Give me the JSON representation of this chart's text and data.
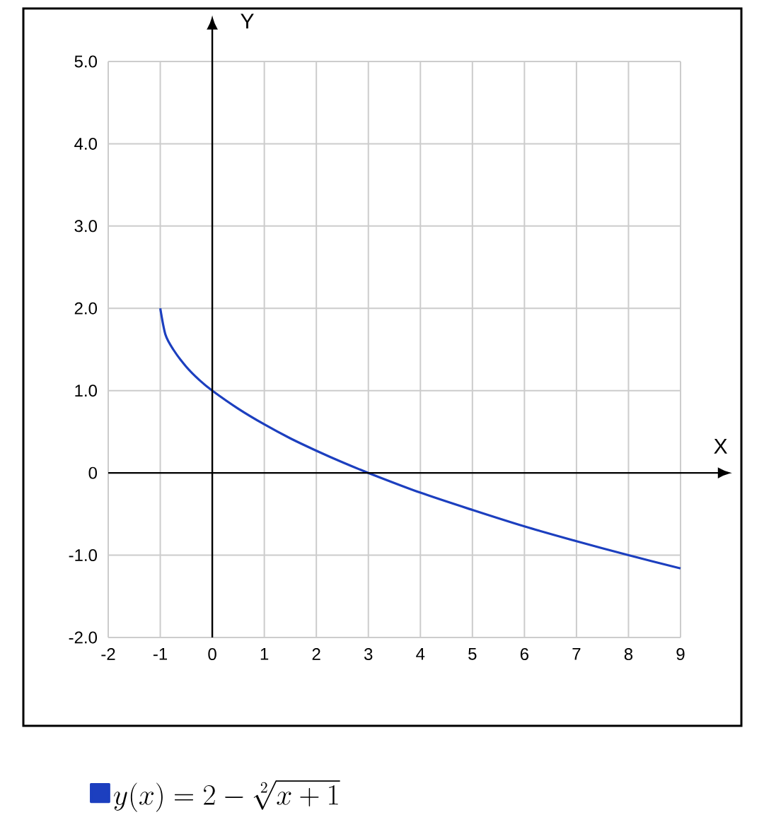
{
  "chart_data": {
    "type": "line",
    "xlabel": "X",
    "ylabel": "Y",
    "xlim": [
      -2,
      9
    ],
    "ylim": [
      -2,
      5
    ],
    "xticks": [
      -2,
      -1,
      0,
      1,
      2,
      3,
      4,
      5,
      6,
      7,
      8,
      9
    ],
    "yticks": [
      {
        "value": -2,
        "label": "-2.0"
      },
      {
        "value": -1,
        "label": "-1.0"
      },
      0,
      {
        "value": 1,
        "label": "1.0"
      },
      {
        "value": 2,
        "label": "2.0"
      },
      {
        "value": 3,
        "label": "3.0"
      },
      {
        "value": 4,
        "label": "4.0"
      },
      {
        "value": 5,
        "label": "5.0"
      }
    ],
    "grid": true,
    "legend": "bottom",
    "series": [
      {
        "name": "y(x) = 2 - \\sqrt[2]{x+1}",
        "color": "#1c3fbf",
        "x": [
          -1,
          -0.9,
          -0.75,
          -0.5,
          -0.25,
          0,
          0.5,
          1,
          1.5,
          2,
          2.5,
          3,
          4,
          5,
          6,
          7,
          8,
          9
        ],
        "values": [
          2,
          1.68,
          1.5,
          1.29,
          1.13,
          1,
          0.78,
          0.59,
          0.42,
          0.27,
          0.13,
          0,
          -0.24,
          -0.45,
          -0.65,
          -0.83,
          -1,
          -1.16
        ]
      }
    ]
  }
}
